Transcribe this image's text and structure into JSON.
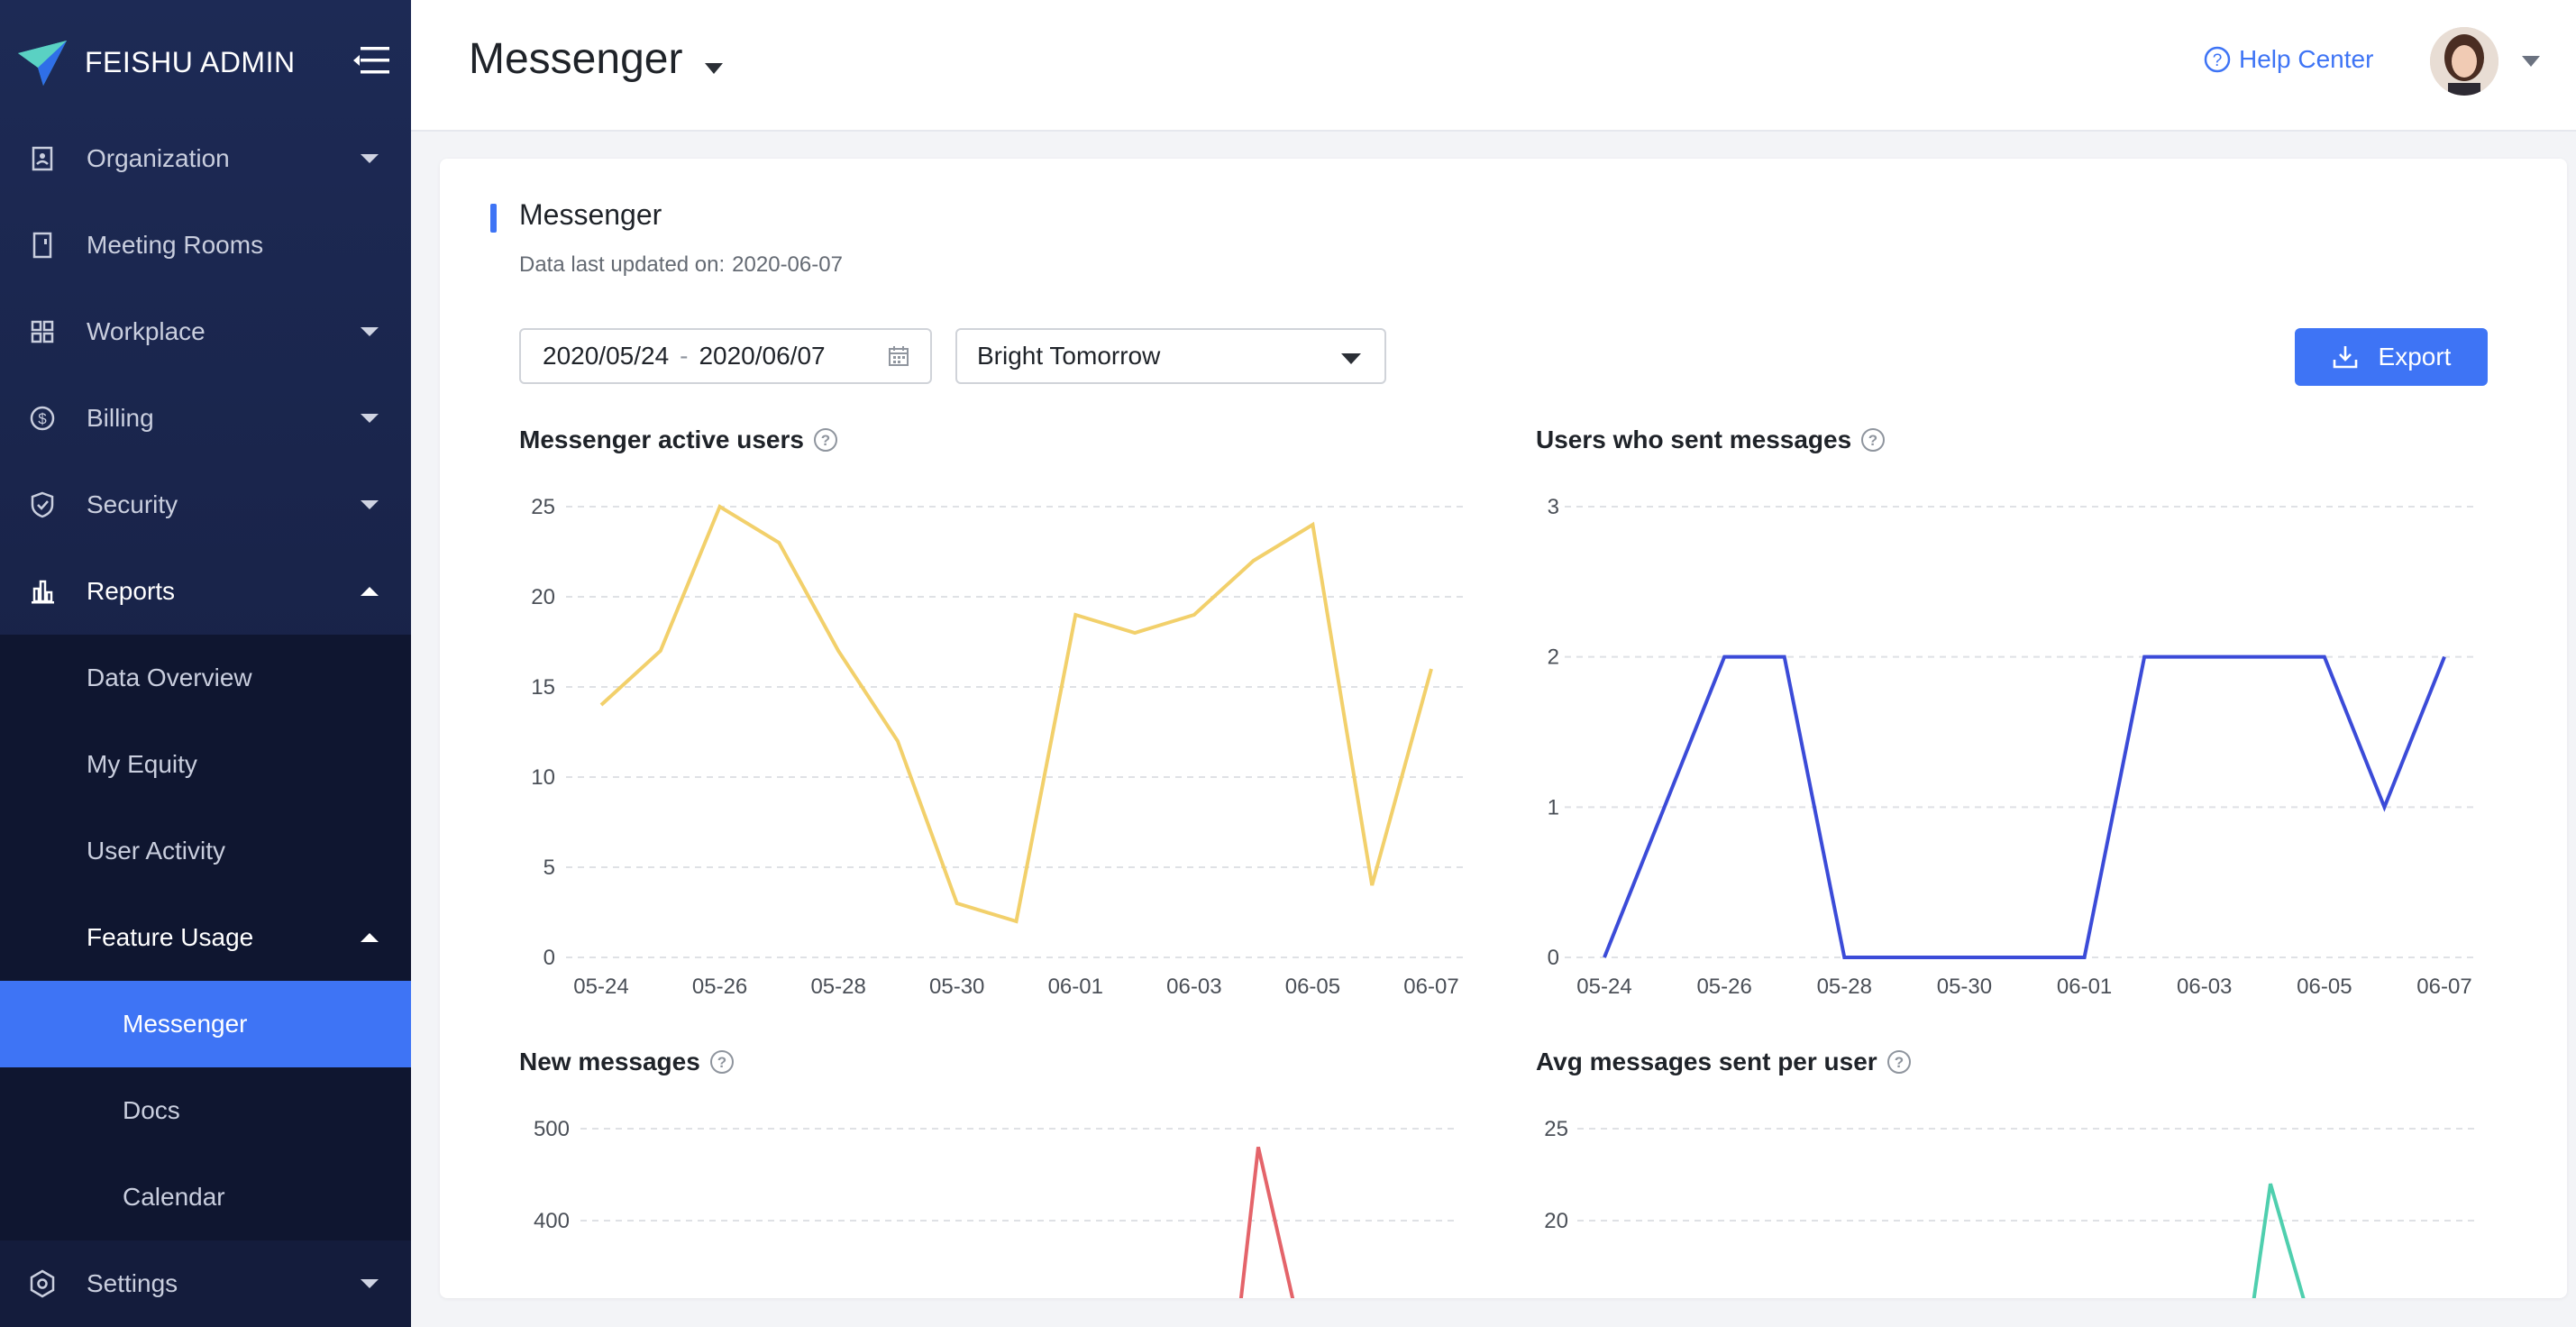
{
  "app": {
    "brand": "FEISHU ADMIN"
  },
  "sidebar": {
    "items": [
      {
        "label": "Organization",
        "icon": "contacts-icon",
        "caret": "down"
      },
      {
        "label": "Meeting Rooms",
        "icon": "door-icon",
        "caret": ""
      },
      {
        "label": "Workplace",
        "icon": "grid-icon",
        "caret": "down"
      },
      {
        "label": "Billing",
        "icon": "dollar-icon",
        "caret": "down"
      },
      {
        "label": "Security",
        "icon": "shield-icon",
        "caret": "down"
      },
      {
        "label": "Reports",
        "icon": "bar-chart-icon",
        "caret": "up"
      }
    ],
    "reports_sub": [
      "Data Overview",
      "My Equity",
      "User Activity"
    ],
    "feature_usage": {
      "label": "Feature Usage",
      "caret": "up"
    },
    "feature_sub": [
      {
        "label": "Messenger",
        "active": true
      },
      {
        "label": "Docs",
        "active": false
      },
      {
        "label": "Calendar",
        "active": false
      }
    ],
    "settings": {
      "label": "Settings",
      "icon": "gear-icon",
      "caret": "down"
    }
  },
  "header": {
    "title": "Messenger",
    "help": "Help Center"
  },
  "card": {
    "title": "Messenger",
    "updated_label": "Data last updated on:",
    "updated_value": "2020-06-07",
    "date_start": "2020/05/24",
    "date_sep": "-",
    "date_end": "2020/06/07",
    "org": "Bright Tomorrow",
    "export": "Export"
  },
  "colors": {
    "accent": "#3e74f5",
    "yellow": "#f2d06b",
    "blue": "#3b4bd8",
    "red": "#e4646a",
    "teal": "#4fcfae"
  },
  "chart_data": [
    {
      "type": "line",
      "title": "Messenger active users",
      "x": [
        "05-24",
        "05-25",
        "05-26",
        "05-27",
        "05-28",
        "05-29",
        "05-30",
        "05-31",
        "06-01",
        "06-02",
        "06-03",
        "06-04",
        "06-05",
        "06-06",
        "06-07"
      ],
      "xticks": [
        "05-24",
        "05-26",
        "05-28",
        "05-30",
        "06-01",
        "06-03",
        "06-05",
        "06-07"
      ],
      "yticks": [
        "0",
        "5",
        "10",
        "15",
        "20",
        "25"
      ],
      "ylim": [
        0,
        25
      ],
      "series": [
        {
          "values": [
            14,
            17,
            25,
            23,
            17,
            12,
            3,
            2,
            19,
            18,
            19,
            22,
            24,
            4,
            16
          ]
        }
      ],
      "color": "#f2d06b",
      "grid": true
    },
    {
      "type": "line",
      "title": "Users who sent messages",
      "x": [
        "05-24",
        "05-25",
        "05-26",
        "05-27",
        "05-28",
        "05-29",
        "05-30",
        "05-31",
        "06-01",
        "06-02",
        "06-03",
        "06-04",
        "06-05",
        "06-06",
        "06-07"
      ],
      "xticks": [
        "05-24",
        "05-26",
        "05-28",
        "05-30",
        "06-01",
        "06-03",
        "06-05",
        "06-07"
      ],
      "yticks": [
        "0",
        "1",
        "2",
        "3"
      ],
      "ylim": [
        0,
        3
      ],
      "series": [
        {
          "values": [
            0,
            1,
            2,
            2,
            0,
            0,
            0,
            0,
            0,
            2,
            2,
            2,
            2,
            1,
            2
          ]
        }
      ],
      "color": "#3b4bd8",
      "grid": true
    },
    {
      "type": "line",
      "title": "New messages",
      "yticks": [
        "400",
        "500"
      ],
      "ylim": [
        0,
        500
      ],
      "series": [
        {
          "values": [
            480
          ]
        }
      ],
      "color": "#e4646a",
      "grid": true
    },
    {
      "type": "line",
      "title": "Avg messages sent per user",
      "yticks": [
        "20",
        "25"
      ],
      "ylim": [
        0,
        25
      ],
      "series": [
        {
          "values": [
            22
          ]
        }
      ],
      "color": "#4fcfae",
      "grid": true
    }
  ]
}
